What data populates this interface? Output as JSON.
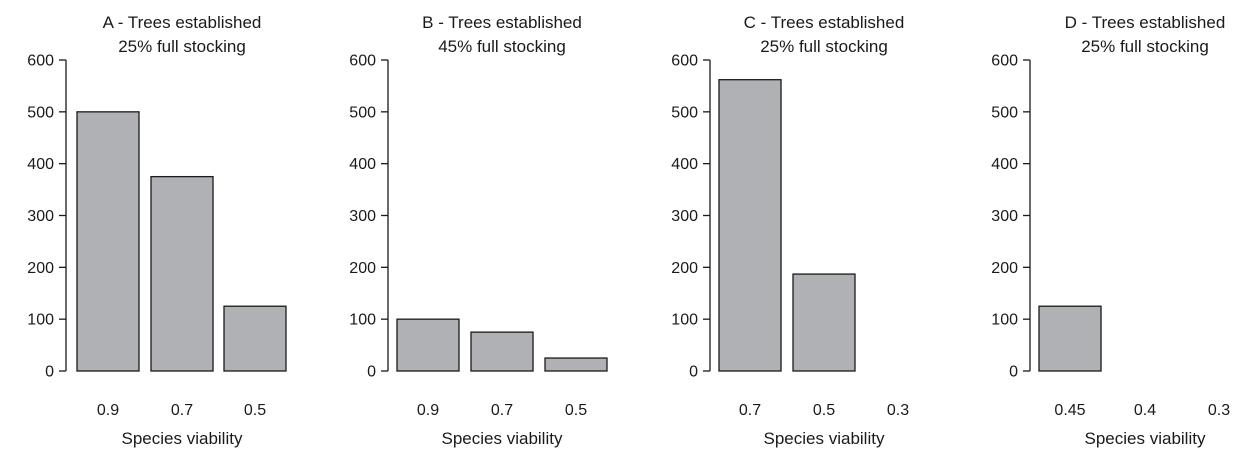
{
  "chart_data": [
    {
      "type": "bar",
      "title": "A - Trees established",
      "subtitle": "25% full stocking",
      "xlabel": "Species viability",
      "ylabel": "",
      "ylim": [
        0,
        600
      ],
      "yticks": [
        0,
        100,
        200,
        300,
        400,
        500,
        600
      ],
      "categories": [
        "0.9",
        "0.7",
        "0.5"
      ],
      "values": [
        500,
        375,
        125
      ]
    },
    {
      "type": "bar",
      "title": "B - Trees established",
      "subtitle": "45% full stocking",
      "xlabel": "Species viability",
      "ylabel": "",
      "ylim": [
        0,
        600
      ],
      "yticks": [
        0,
        100,
        200,
        300,
        400,
        500,
        600
      ],
      "categories": [
        "0.9",
        "0.7",
        "0.5"
      ],
      "values": [
        100,
        75,
        25
      ]
    },
    {
      "type": "bar",
      "title": "C - Trees established",
      "subtitle": "25% full stocking",
      "xlabel": "Species viability",
      "ylabel": "",
      "ylim": [
        0,
        600
      ],
      "yticks": [
        0,
        100,
        200,
        300,
        400,
        500,
        600
      ],
      "categories": [
        "0.7",
        "0.5",
        "0.3"
      ],
      "values": [
        562,
        187,
        0
      ]
    },
    {
      "type": "bar",
      "title": "D - Trees established",
      "subtitle": "25% full stocking",
      "xlabel": "Species viability",
      "ylabel": "",
      "ylim": [
        0,
        600
      ],
      "yticks": [
        0,
        100,
        200,
        300,
        400,
        500,
        600
      ],
      "categories": [
        "0.45",
        "0.4",
        "0.3"
      ],
      "values": [
        125,
        0,
        0
      ]
    }
  ],
  "colors": {
    "bar_fill": "#b0b1b5",
    "bar_stroke": "#1a1a1a",
    "axis": "#1a1a1a"
  }
}
